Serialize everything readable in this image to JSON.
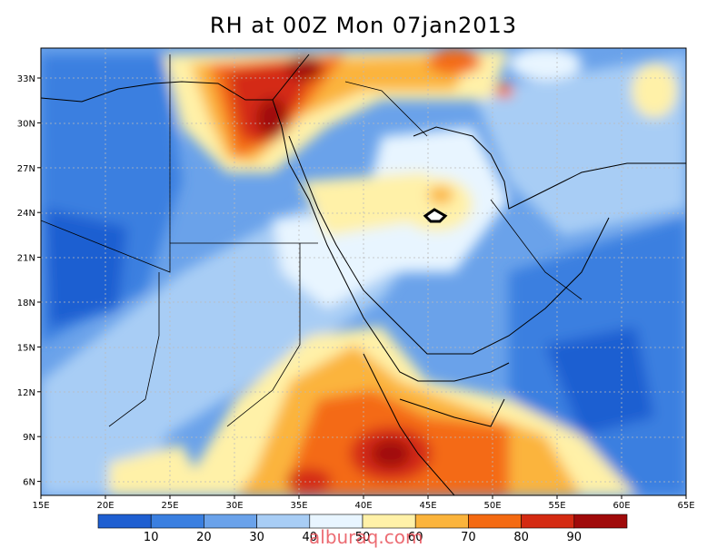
{
  "title": "RH at 00Z Mon 07jan2013",
  "watermark": "alburaq.com",
  "x_ticks": [
    "15E",
    "20E",
    "25E",
    "30E",
    "35E",
    "40E",
    "45E",
    "50E",
    "55E",
    "60E",
    "65E"
  ],
  "y_ticks": [
    "33N",
    "30N",
    "27N",
    "24N",
    "21N",
    "18N",
    "15N",
    "12N",
    "9N",
    "6N"
  ],
  "colorbar": {
    "labels": [
      "10",
      "20",
      "30",
      "40",
      "50",
      "60",
      "70",
      "80",
      "90"
    ],
    "colors": [
      "#1f5fd1",
      "#3a7fe0",
      "#6aa2ea",
      "#a8cdf5",
      "#e8f5ff",
      "#fff1a8",
      "#fbb43c",
      "#f46a12",
      "#d42a12",
      "#a00a0a"
    ]
  },
  "colors": {
    "base": "#6aa2ea",
    "frame": "#000000"
  }
}
